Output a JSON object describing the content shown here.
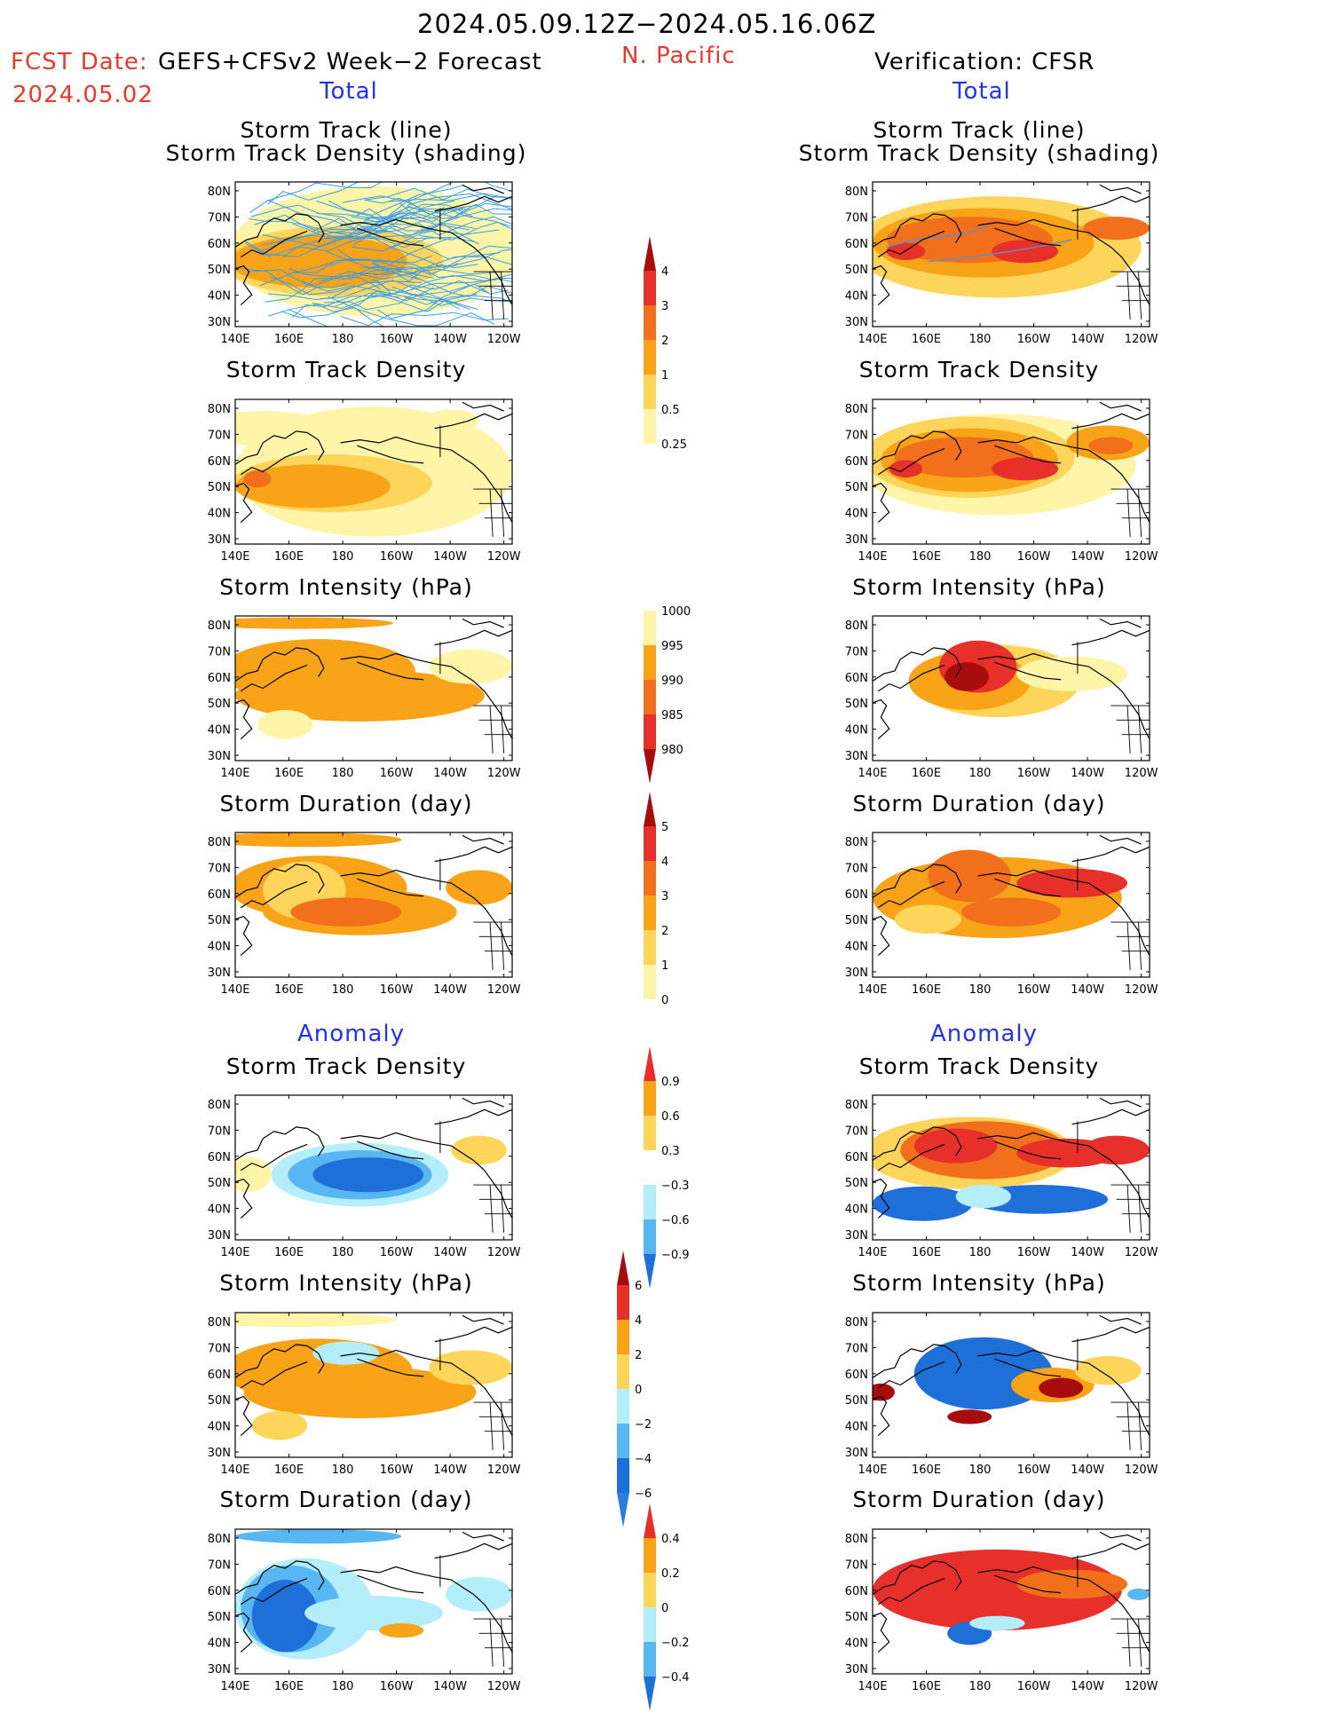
{
  "header": {
    "period": "2024.05.09.12Z−2024.05.16.06Z",
    "fcst_label": "FCST Date:",
    "forecast_name": "GEFS+CFSv2 Week−2 Forecast",
    "fcst_date": "2024.05.02",
    "region": "N. Pacific",
    "verification": "Verification: CFSR"
  },
  "sections": {
    "total": "Total",
    "anomaly": "Anomaly"
  },
  "panel_titles": {
    "track_line": "Storm Track (line)",
    "track_shading": "Storm Track Density (shading)",
    "track_density": "Storm Track Density",
    "intensity": "Storm Intensity (hPa)",
    "duration": "Storm Duration (day)"
  },
  "axes": {
    "lon_ticks": [
      "140E",
      "160E",
      "180",
      "160W",
      "140W",
      "120W"
    ],
    "lat_ticks": [
      "80N",
      "70N",
      "60N",
      "50N",
      "40N",
      "30N"
    ]
  },
  "colorbars": {
    "density_total": [
      "4",
      "3",
      "2",
      "1",
      "0.5",
      "0.25"
    ],
    "intensity_total": [
      "1000",
      "995",
      "990",
      "985",
      "980"
    ],
    "duration_total": [
      "5",
      "4",
      "3",
      "2",
      "1",
      "0"
    ],
    "density_anom": [
      "0.9",
      "0.6",
      "0.3",
      "−0.3",
      "−0.6",
      "−0.9"
    ],
    "intensity_anom": [
      "6",
      "4",
      "2",
      "0",
      "−2",
      "−4",
      "−6"
    ],
    "duration_anom": [
      "0.4",
      "0.2",
      "0",
      "−0.2",
      "−0.4"
    ]
  },
  "colors": {
    "pale_yellow": "#fff5a8",
    "yellow": "#fcd55a",
    "orange": "#f8a318",
    "dark_orange": "#f2701c",
    "red": "#e8302a",
    "dark_red": "#a80d0d",
    "light_blue": "#b4eefb",
    "mid_blue": "#58b6f2",
    "blue": "#1e6fd8",
    "track_line": "#3a9ce8"
  }
}
